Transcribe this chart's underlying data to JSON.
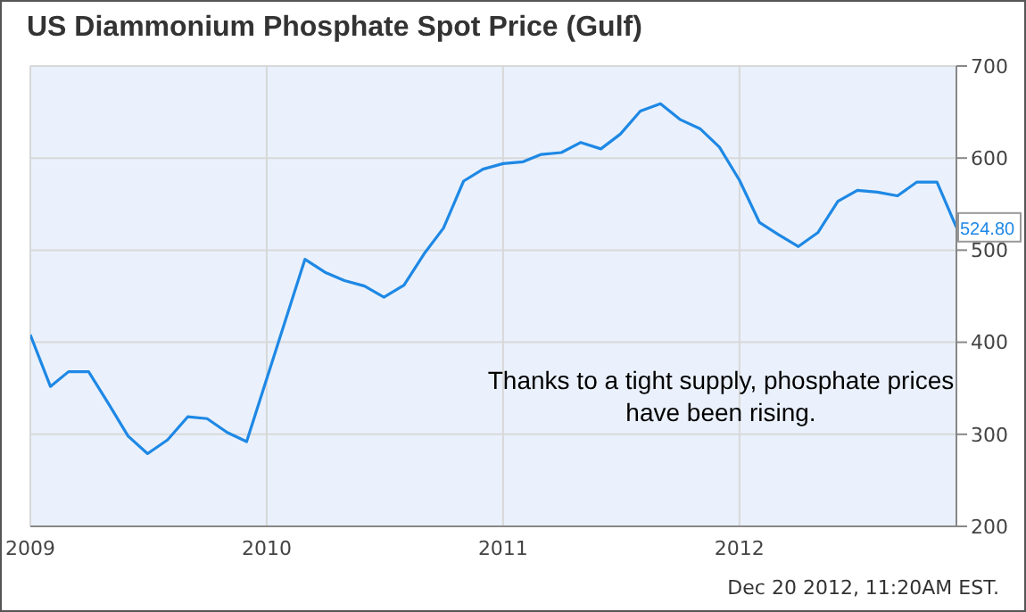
{
  "chart_data": {
    "type": "line",
    "title": "US Diammonium Phosphate Spot Price (Gulf)",
    "x": [
      "2009-01",
      "2009-02",
      "2009-03",
      "2009-04",
      "2009-05",
      "2009-06",
      "2009-07",
      "2009-08",
      "2009-09",
      "2009-10",
      "2009-11",
      "2009-12",
      "2010-03",
      "2010-04",
      "2010-05",
      "2010-06",
      "2010-07",
      "2010-08",
      "2010-09",
      "2010-10",
      "2010-11",
      "2010-12",
      "2011-01",
      "2011-02",
      "2011-03",
      "2011-04",
      "2011-05",
      "2011-06",
      "2011-07",
      "2011-08",
      "2011-09",
      "2011-10",
      "2011-11",
      "2011-12",
      "2012-01",
      "2012-02",
      "2012-03",
      "2012-04",
      "2012-05",
      "2012-06",
      "2012-07",
      "2012-08",
      "2012-09",
      "2012-10",
      "2012-11",
      "2012-12"
    ],
    "series": [
      {
        "color": "#1e88e5",
        "values": [
          408,
          352,
          368,
          368,
          334,
          298,
          279,
          294,
          319,
          317,
          302,
          292,
          490,
          476,
          467,
          461,
          449,
          462,
          496,
          524,
          575,
          588,
          594,
          596,
          604,
          606,
          617,
          610,
          626,
          651,
          659,
          642,
          632,
          612,
          576,
          530,
          517,
          504,
          519,
          553,
          565,
          563,
          559,
          574,
          574,
          524.8
        ],
        "value_labels": [
          null,
          null,
          null,
          null,
          null,
          null,
          null,
          null,
          null,
          null,
          null,
          null,
          null,
          null,
          null,
          null,
          null,
          null,
          null,
          null,
          null,
          null,
          null,
          null,
          null,
          null,
          null,
          null,
          null,
          null,
          null,
          null,
          null,
          null,
          null,
          null,
          null,
          null,
          null,
          null,
          null,
          null,
          null,
          null,
          null,
          "524.80"
        ]
      }
    ],
    "xlim": [
      "2009-01",
      "2012-12"
    ],
    "xticks": [
      "2009",
      "2010",
      "2011",
      "2012"
    ],
    "ylim": [
      200,
      700
    ],
    "yticks": [
      200,
      300,
      400,
      500,
      600,
      700
    ],
    "grid": true,
    "marker": "none",
    "line_style": "solid",
    "annotations": [
      "Thanks to a tight supply, phosphate prices have been rising.",
      "Dec 20 2012, 11:20AM EST."
    ]
  }
}
